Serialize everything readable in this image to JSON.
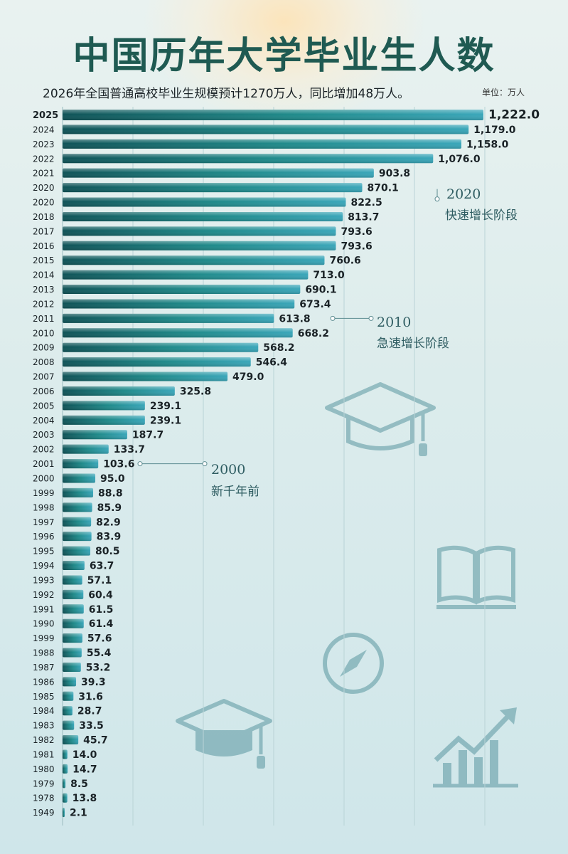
{
  "title": "中国历年大学毕业生人数",
  "subtitle": "2026年全国普通高校毕业生规模预计1270万人，同比增加48万人。",
  "unit": "单位：万人",
  "colors": {
    "bar_dark": "#0f5357",
    "bar_mid": "#1f8a8a",
    "bar_light": "#3aa6b9",
    "title": "#1f5a52"
  },
  "icons": [
    "graduation-cap-icon",
    "open-book-icon",
    "compass-icon",
    "rising-chart-icon"
  ],
  "annotations": [
    {
      "year": "2020",
      "text": "快速增长阶段"
    },
    {
      "year": "2010",
      "text": "急速增长阶段"
    },
    {
      "year": "2000",
      "text": "新千年前"
    }
  ],
  "chart_data": {
    "type": "bar",
    "orientation": "horizontal",
    "title": "中国历年大学毕业生人数",
    "unit": "万人",
    "categories": [
      "2025",
      "2024",
      "2023",
      "2022",
      "2021",
      "2020",
      "2020",
      "2018",
      "2017",
      "2016",
      "2015",
      "2014",
      "2013",
      "2012",
      "2011",
      "2010",
      "2009",
      "2008",
      "2007",
      "2006",
      "2005",
      "2004",
      "2003",
      "2002",
      "2001",
      "2000",
      "1999",
      "1998",
      "1997",
      "1996",
      "1995",
      "1994",
      "1993",
      "1992",
      "1991",
      "1990",
      "1999",
      "1988",
      "1987",
      "1986",
      "1985",
      "1984",
      "1983",
      "1982",
      "1981",
      "1980",
      "1979",
      "1978",
      "1949"
    ],
    "values": [
      1222.0,
      1179.0,
      1158.0,
      1076.0,
      903.8,
      870.1,
      822.5,
      813.7,
      793.6,
      793.6,
      760.6,
      713.0,
      690.1,
      673.4,
      613.8,
      668.2,
      568.2,
      546.4,
      479.0,
      325.8,
      239.1,
      239.1,
      187.7,
      133.7,
      103.6,
      95.0,
      88.8,
      85.9,
      82.9,
      83.9,
      80.5,
      63.7,
      57.1,
      60.4,
      61.5,
      61.4,
      57.6,
      55.4,
      53.2,
      39.3,
      31.6,
      28.7,
      33.5,
      45.7,
      14.0,
      14.7,
      8.5,
      13.8,
      2.1
    ],
    "labels": [
      "1,222.0",
      "1,179.0",
      "1,158.0",
      "1,076.0",
      "903.8",
      "870.1",
      "822.5",
      "813.7",
      "793.6",
      "793.6",
      "760.6",
      "713.0",
      "690.1",
      "673.4",
      "613.8",
      "668.2",
      "568.2",
      "546.4",
      "479.0",
      "325.8",
      "239.1",
      "239.1",
      "187.7",
      "133.7",
      "103.6",
      "95.0",
      "88.8",
      "85.9",
      "82.9",
      "83.9",
      "80.5",
      "63.7",
      "57.1",
      "60.4",
      "61.5",
      "61.4",
      "57.6",
      "55.4",
      "53.2",
      "39.3",
      "31.6",
      "28.7",
      "33.5",
      "45.7",
      "14.0",
      "14.7",
      "8.5",
      "13.8",
      "2.1"
    ],
    "xlim": [
      0,
      1222
    ],
    "grid": true
  }
}
